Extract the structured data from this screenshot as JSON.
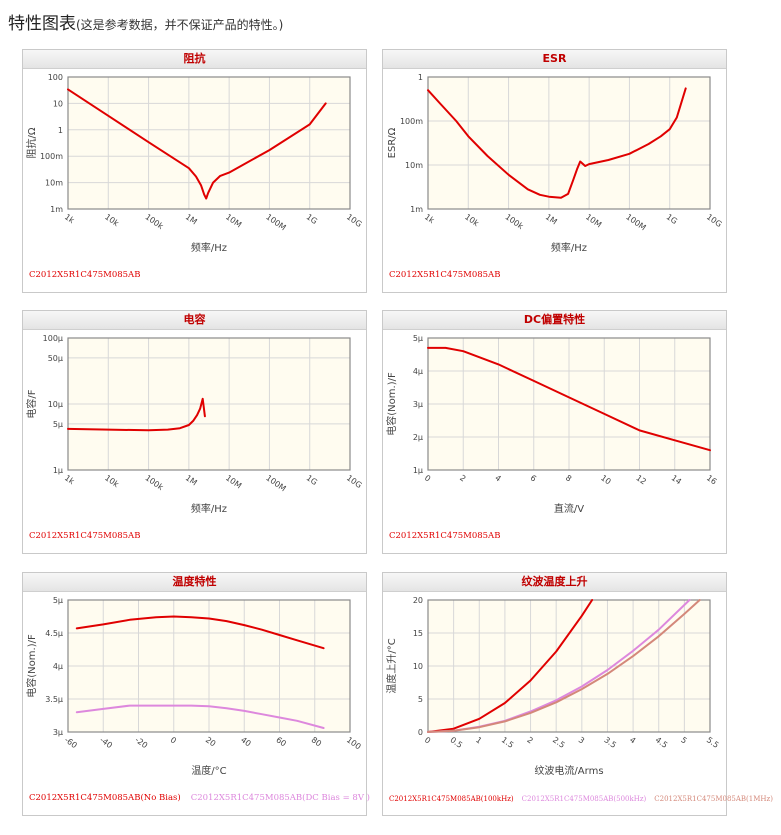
{
  "page": {
    "title": "特性图表",
    "subtitle": "(这是参考数据，并不保证产品的特性。)"
  },
  "colors": {
    "red": "#e00000",
    "pink": "#dd88dd",
    "orange": "#d4887a",
    "plot_bg": "#fffcf0",
    "grid": "#d8d8d8"
  },
  "chart_data": [
    {
      "id": "impedance",
      "type": "line",
      "title": "阻抗",
      "xlabel": "频率/Hz",
      "ylabel": "阻抗/Ω",
      "xscale": "log",
      "yscale": "log",
      "xlim": [
        1000,
        10000000000
      ],
      "ylim": [
        0.001,
        100
      ],
      "xticks": [
        1000,
        10000,
        100000,
        1000000,
        10000000,
        100000000,
        1000000000,
        10000000000
      ],
      "xtick_labels": [
        "1k",
        "10k",
        "100k",
        "1M",
        "10M",
        "100M",
        "1G",
        "10G"
      ],
      "yticks": [
        0.001,
        0.01,
        0.1,
        1,
        10,
        100
      ],
      "ytick_labels": [
        "1m",
        "10m",
        "100m",
        "1",
        "10",
        "100"
      ],
      "series": [
        {
          "name": "C2012X5R1C475M085AB",
          "color": "#e00000",
          "x": [
            1000,
            10000,
            100000,
            1000000,
            1500000,
            2000000,
            2400000,
            2700000,
            3000000,
            4000000,
            6000000,
            10000000,
            100000000,
            1000000000,
            2500000000
          ],
          "y": [
            34,
            3.4,
            0.34,
            0.035,
            0.017,
            0.008,
            0.0035,
            0.0025,
            0.004,
            0.01,
            0.018,
            0.024,
            0.17,
            1.6,
            10
          ]
        }
      ],
      "legend": [
        {
          "label": "C2012X5R1C475M085AB",
          "color": "#e00000"
        }
      ]
    },
    {
      "id": "esr",
      "type": "line",
      "title": "ESR",
      "xlabel": "频率/Hz",
      "ylabel": "ESR/Ω",
      "xscale": "log",
      "yscale": "log",
      "xlim": [
        1000,
        10000000000
      ],
      "ylim": [
        0.001,
        1
      ],
      "xticks": [
        1000,
        10000,
        100000,
        1000000,
        10000000,
        100000000,
        1000000000,
        10000000000
      ],
      "xtick_labels": [
        "1k",
        "10k",
        "100k",
        "1M",
        "10M",
        "100M",
        "1G",
        "10G"
      ],
      "yticks": [
        0.001,
        0.01,
        0.1,
        1
      ],
      "ytick_labels": [
        "1m",
        "10m",
        "100m",
        "1"
      ],
      "series": [
        {
          "name": "C2012X5R1C475M085AB",
          "color": "#e00000",
          "x": [
            1000,
            2000,
            5000,
            10000,
            30000,
            100000,
            300000,
            600000,
            1000000,
            2000000,
            3000000,
            4000000,
            5000000,
            6000000,
            8000000,
            10000000,
            30000000,
            100000000,
            300000000,
            600000000,
            1000000000,
            1500000000,
            2500000000
          ],
          "y": [
            0.5,
            0.25,
            0.1,
            0.045,
            0.016,
            0.006,
            0.0028,
            0.0021,
            0.0019,
            0.0018,
            0.0022,
            0.0045,
            0.008,
            0.012,
            0.0095,
            0.0105,
            0.013,
            0.018,
            0.03,
            0.045,
            0.065,
            0.12,
            0.55
          ]
        }
      ],
      "legend": [
        {
          "label": "C2012X5R1C475M085AB",
          "color": "#e00000"
        }
      ]
    },
    {
      "id": "capacitance",
      "type": "line",
      "title": "电容",
      "xlabel": "频率/Hz",
      "ylabel": "电容/F",
      "xscale": "log",
      "yscale": "log",
      "xlim": [
        1000,
        10000000000
      ],
      "ylim": [
        1e-06,
        0.0001
      ],
      "xticks": [
        1000,
        10000,
        100000,
        1000000,
        10000000,
        100000000,
        1000000000,
        10000000000
      ],
      "xtick_labels": [
        "1k",
        "10k",
        "100k",
        "1M",
        "10M",
        "100M",
        "1G",
        "10G"
      ],
      "yticks": [
        1e-06,
        5e-06,
        1e-05,
        5e-05,
        0.0001
      ],
      "ytick_labels": [
        "1μ",
        "5μ",
        "10μ",
        "50μ",
        "100μ"
      ],
      "series": [
        {
          "name": "C2012X5R1C475M085AB",
          "color": "#e00000",
          "x": [
            1000,
            10000,
            100000,
            300000,
            600000,
            1000000,
            1300000,
            1600000,
            1900000,
            2200000,
            2500000
          ],
          "y": [
            4.2e-06,
            4.1e-06,
            4e-06,
            4.1e-06,
            4.3e-06,
            4.8e-06,
            5.6e-06,
            6.8e-06,
            8.5e-06,
            1.2e-05,
            6.5e-06
          ]
        }
      ],
      "legend": [
        {
          "label": "C2012X5R1C475M085AB",
          "color": "#e00000"
        }
      ]
    },
    {
      "id": "dc_bias",
      "type": "line",
      "title": "DC偏置特性",
      "xlabel": "直流/V",
      "ylabel": "电容(Nom.)/F",
      "xscale": "linear",
      "yscale": "linear",
      "xlim": [
        0,
        16
      ],
      "ylim": [
        1e-06,
        5e-06
      ],
      "xticks": [
        0,
        2,
        4,
        6,
        8,
        10,
        12,
        14,
        16
      ],
      "xtick_labels": [
        "0",
        "2",
        "4",
        "6",
        "8",
        "10",
        "12",
        "14",
        "16"
      ],
      "yticks": [
        1e-06,
        2e-06,
        3e-06,
        4e-06,
        5e-06
      ],
      "ytick_labels": [
        "1μ",
        "2μ",
        "3μ",
        "4μ",
        "5μ"
      ],
      "series": [
        {
          "name": "C2012X5R1C475M085AB",
          "color": "#e00000",
          "x": [
            0,
            1,
            2,
            3,
            4,
            6,
            8,
            10,
            12,
            14,
            16
          ],
          "y": [
            4.7e-06,
            4.7e-06,
            4.6e-06,
            4.4e-06,
            4.2e-06,
            3.7e-06,
            3.2e-06,
            2.7e-06,
            2.2e-06,
            1.9e-06,
            1.6e-06
          ]
        }
      ],
      "legend": [
        {
          "label": "C2012X5R1C475M085AB",
          "color": "#e00000"
        }
      ]
    },
    {
      "id": "temperature",
      "type": "line",
      "title": "温度特性",
      "xlabel": "温度/°C",
      "ylabel": "电容(Nom.)/F",
      "xscale": "linear",
      "yscale": "linear",
      "xlim": [
        -60,
        100
      ],
      "ylim": [
        3e-06,
        5e-06
      ],
      "xticks": [
        -60,
        -40,
        -20,
        0,
        20,
        40,
        60,
        80,
        100
      ],
      "xtick_labels": [
        "-60",
        "-40",
        "-20",
        "0",
        "20",
        "40",
        "60",
        "80",
        "100"
      ],
      "yticks": [
        3e-06,
        3.5e-06,
        4e-06,
        4.5e-06,
        5e-06
      ],
      "ytick_labels": [
        "3μ",
        "3.5μ",
        "4μ",
        "4.5μ",
        "5μ"
      ],
      "series": [
        {
          "name": "C2012X5R1C475M085AB(No Bias)",
          "color": "#e00000",
          "x": [
            -55,
            -40,
            -25,
            -10,
            0,
            10,
            20,
            30,
            40,
            50,
            60,
            70,
            85
          ],
          "y": [
            4.57e-06,
            4.63e-06,
            4.7e-06,
            4.74e-06,
            4.75e-06,
            4.74e-06,
            4.72e-06,
            4.68e-06,
            4.62e-06,
            4.55e-06,
            4.47e-06,
            4.39e-06,
            4.27e-06
          ]
        },
        {
          "name": "C2012X5R1C475M085AB(DC Bias = 8V )",
          "color": "#dd88dd",
          "x": [
            -55,
            -40,
            -25,
            -10,
            0,
            10,
            20,
            30,
            40,
            50,
            60,
            70,
            85
          ],
          "y": [
            3.3e-06,
            3.35e-06,
            3.4e-06,
            3.4e-06,
            3.4e-06,
            3.4e-06,
            3.39e-06,
            3.36e-06,
            3.32e-06,
            3.27e-06,
            3.22e-06,
            3.17e-06,
            3.06e-06
          ]
        }
      ],
      "legend": [
        {
          "label": "C2012X5R1C475M085AB(No Bias)",
          "color": "#e00000"
        },
        {
          "label": "C2012X5R1C475M085AB(DC Bias = 8V )",
          "color": "#dd88dd"
        }
      ]
    },
    {
      "id": "ripple",
      "type": "line",
      "title": "纹波温度上升",
      "xlabel": "纹波电流/Arms",
      "ylabel": "温度上升/°C",
      "xscale": "linear",
      "yscale": "linear",
      "xlim": [
        0,
        5.5
      ],
      "ylim": [
        0,
        20
      ],
      "xticks": [
        0,
        0.5,
        1,
        1.5,
        2,
        2.5,
        3,
        3.5,
        4,
        4.5,
        5,
        5.5
      ],
      "xtick_labels": [
        "0",
        "0.5",
        "1",
        "1.5",
        "2",
        "2.5",
        "3",
        "3.5",
        "4",
        "4.5",
        "5",
        "5.5"
      ],
      "yticks": [
        0,
        5,
        10,
        15,
        20
      ],
      "ytick_labels": [
        "0",
        "5",
        "10",
        "15",
        "20"
      ],
      "series": [
        {
          "name": "C2012X5R1C475M085AB(100kHz)",
          "color": "#e00000",
          "x": [
            0,
            0.5,
            1,
            1.5,
            2,
            2.5,
            3,
            3.2
          ],
          "y": [
            0,
            0.5,
            2,
            4.4,
            7.8,
            12.2,
            17.6,
            20
          ]
        },
        {
          "name": "C2012X5R1C475M085AB(500kHz)",
          "color": "#dd88dd",
          "x": [
            0,
            0.5,
            1,
            1.5,
            2,
            2.5,
            3,
            3.5,
            4,
            4.5,
            5.1
          ],
          "y": [
            0,
            0.2,
            0.8,
            1.7,
            3.1,
            4.8,
            6.9,
            9.4,
            12.3,
            15.5,
            20
          ]
        },
        {
          "name": "C2012X5R1C475M085AB(1MHz)",
          "color": "#d4887a",
          "x": [
            0,
            0.5,
            1,
            1.5,
            2,
            2.5,
            3,
            3.5,
            4,
            4.5,
            5,
            5.3
          ],
          "y": [
            0,
            0.18,
            0.72,
            1.6,
            2.9,
            4.5,
            6.5,
            8.8,
            11.5,
            14.5,
            17.9,
            20
          ]
        }
      ],
      "legend": [
        {
          "label": "C2012X5R1C475M085AB(100kHz)",
          "color": "#e00000"
        },
        {
          "label": "C2012X5R1C475M085AB(500kHz)",
          "color": "#dd88dd"
        },
        {
          "label": "C2012X5R1C475M085AB(1MHz)",
          "color": "#d4887a"
        }
      ]
    }
  ]
}
